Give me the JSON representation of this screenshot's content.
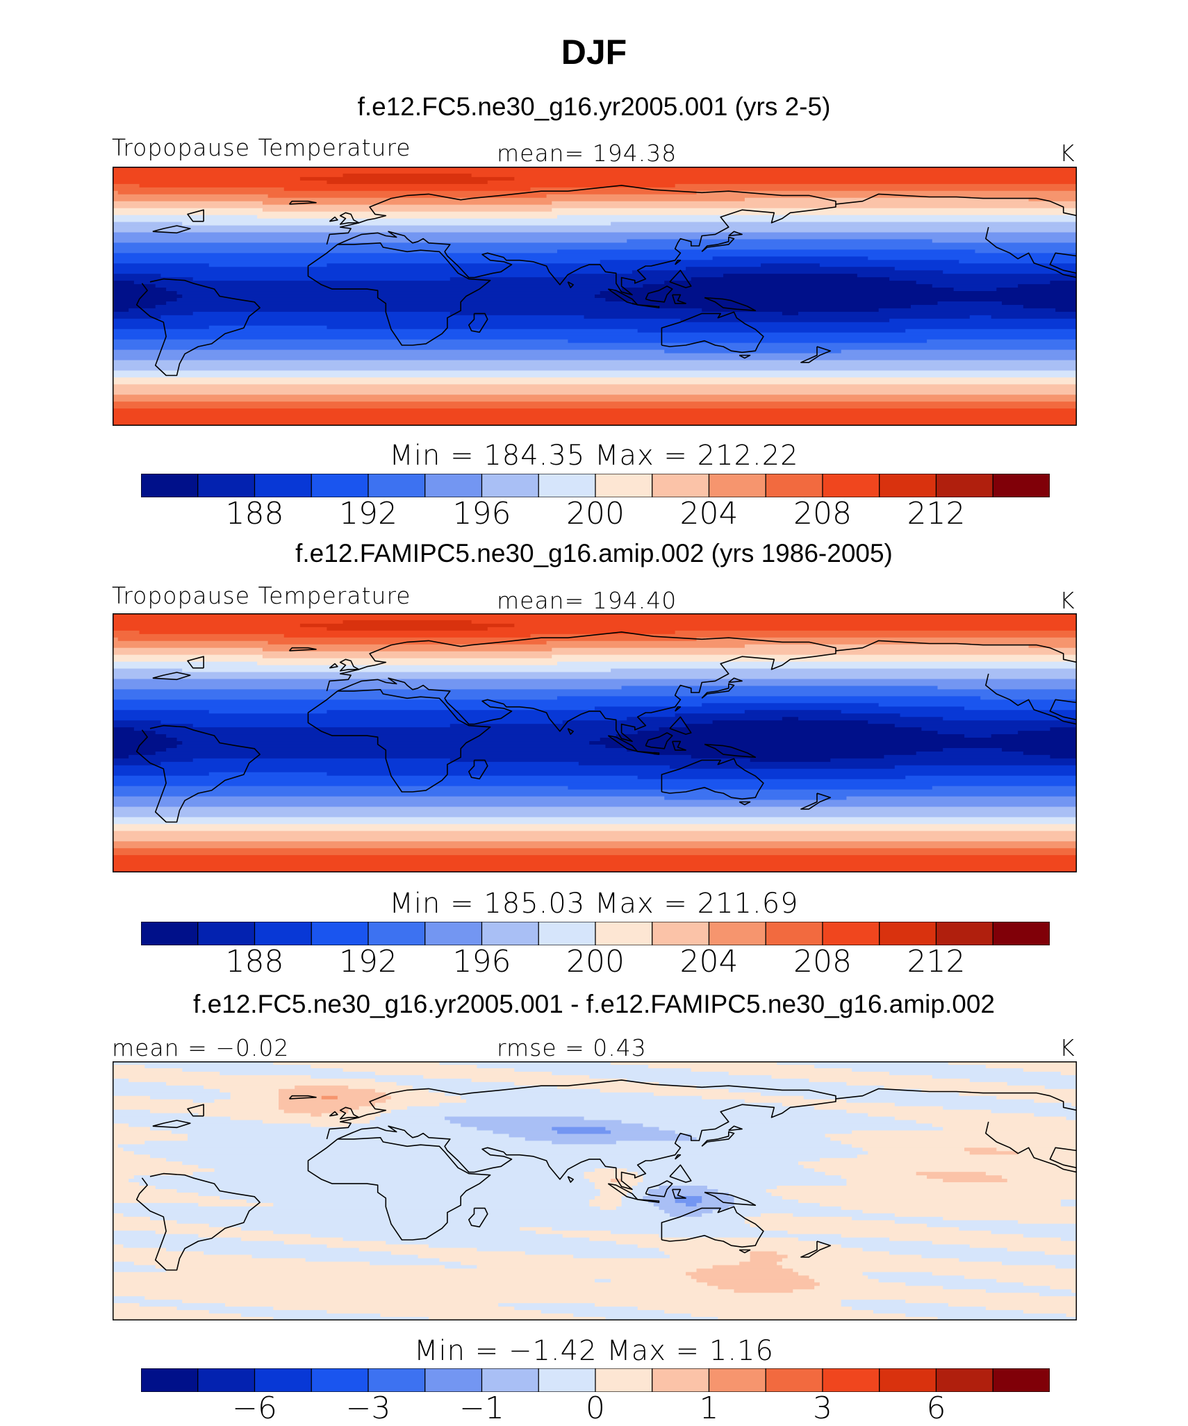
{
  "title": "DJF",
  "panels": [
    {
      "case": "f.e12.FC5.ne30_g16.yr2005.001 (yrs 2-5)",
      "left": "Tropopause Temperature",
      "center": "mean=  194.38",
      "right": "K",
      "minmax": "Min  =  184.35  Max  =  212.22",
      "field": "abs",
      "stats": {
        "mean": 194.38,
        "min": 184.35,
        "max": 212.22,
        "units": "K"
      }
    },
    {
      "case": "f.e12.FAMIPC5.ne30_g16.amip.002 (yrs 1986-2005)",
      "left": "Tropopause Temperature",
      "center": "mean=  194.40",
      "right": "K",
      "minmax": "Min  =  185.03  Max  =  211.69",
      "field": "abs",
      "stats": {
        "mean": 194.4,
        "min": 185.03,
        "max": 211.69,
        "units": "K"
      }
    },
    {
      "case": "f.e12.FC5.ne30_g16.yr2005.001 - f.e12.FAMIPC5.ne30_g16.amip.002",
      "left": "mean  =   −0.02",
      "center": "rmse  =    0.43",
      "right": "K",
      "minmax": "Min  =   −1.42  Max  =    1.16",
      "field": "diff",
      "stats": {
        "mean": -0.02,
        "rmse": 0.43,
        "min": -1.42,
        "max": 1.16,
        "units": "K"
      }
    }
  ],
  "colorbars": {
    "abs": {
      "colors": [
        "#00108a",
        "#0322b0",
        "#0838d6",
        "#1a55ef",
        "#3d72f1",
        "#7396f2",
        "#a9bff5",
        "#d6e5fb",
        "#fde6d3",
        "#fbc3a8",
        "#f6956e",
        "#f26a3f",
        "#f0461e",
        "#d9320e",
        "#b01f0d",
        "#800008"
      ],
      "labels": [
        "188",
        "192",
        "196",
        "200",
        "204",
        "208",
        "212"
      ]
    },
    "diff": {
      "colors": [
        "#00108a",
        "#0322b0",
        "#0838d6",
        "#1a55ef",
        "#3d72f1",
        "#7396f2",
        "#a9bff5",
        "#d6e5fb",
        "#fde6d3",
        "#fbc3a8",
        "#f6956e",
        "#f26a3f",
        "#f0461e",
        "#d9320e",
        "#b01f0d",
        "#800008"
      ],
      "labels": [
        "−6",
        "−3",
        "−1",
        "0",
        "1",
        "3",
        "6"
      ]
    }
  }
}
